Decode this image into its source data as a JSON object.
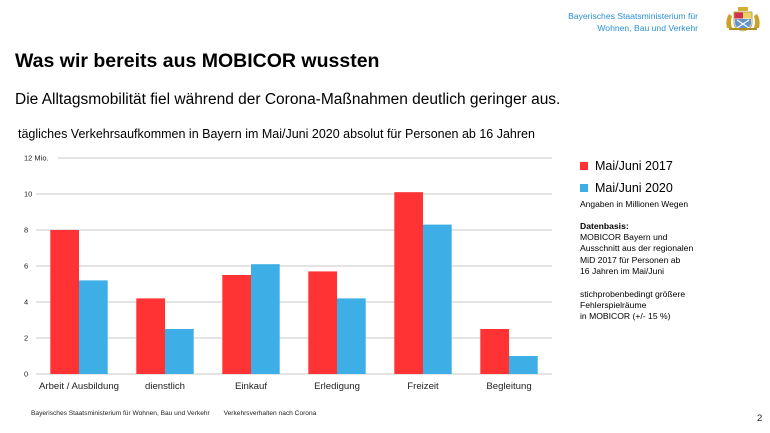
{
  "header": {
    "ministry_line1": "Bayerisches Staatsministerium für",
    "ministry_line2": "Wohnen, Bau und Verkehr",
    "logo_icon": "bavarian-coat-of-arms-icon"
  },
  "slide": {
    "title": "Was wir bereits aus MOBICOR wussten",
    "subtitle": "Die Alltagsmobilität fiel während der Corona-Maßnahmen deutlich geringer aus."
  },
  "legend": {
    "unit_note": "Angaben in Millionen Wegen"
  },
  "notes": {
    "heading": "Datenbasis:",
    "lines": [
      "MOBICOR Bayern und",
      "Ausschnitt aus der regionalen",
      "MiD 2017 für Personen ab",
      "16 Jahren im Mai/Juni"
    ],
    "caveat_lines": [
      "stichprobenbedingt größere",
      "Fehlerspielräume",
      "in MOBICOR (+/- 15 %)"
    ]
  },
  "footer": {
    "org": "Bayerisches Staatsministerium für Wohnen, Bau und Verkehr",
    "topic": "Verkehrsverhalten nach Corona",
    "page_number": "2"
  },
  "colors": {
    "series_2017": "#ff3333",
    "series_2020": "#3daee6",
    "gridline": "#c8c8c8",
    "ministry_blue": "#2a8fd6"
  },
  "chart_data": {
    "type": "bar",
    "title": "tägliches Verkehrsaufkommen in Bayern im Mai/Juni 2020 absolut für Personen ab 16 Jahren",
    "xlabel": "",
    "ylabel": "",
    "categories": [
      "Arbeit / Ausbildung",
      "dienstlich",
      "Einkauf",
      "Erledigung",
      "Freizeit",
      "Begleitung"
    ],
    "series": [
      {
        "name": "Mai/Juni 2017",
        "color": "#ff3333",
        "values": [
          8.0,
          4.2,
          5.5,
          5.7,
          10.1,
          2.5
        ]
      },
      {
        "name": "Mai/Juni 2020",
        "color": "#3daee6",
        "values": [
          5.2,
          2.5,
          6.1,
          4.2,
          8.3,
          1.0
        ]
      }
    ],
    "ylim": [
      0,
      12
    ],
    "yticks": [
      0,
      2,
      4,
      6,
      8,
      10,
      12
    ],
    "ytick_labels": [
      "0",
      "2",
      "4",
      "6",
      "8",
      "10",
      "12 Mio."
    ],
    "grid": true,
    "legend_position": "right",
    "unit": "Millionen Wege"
  }
}
